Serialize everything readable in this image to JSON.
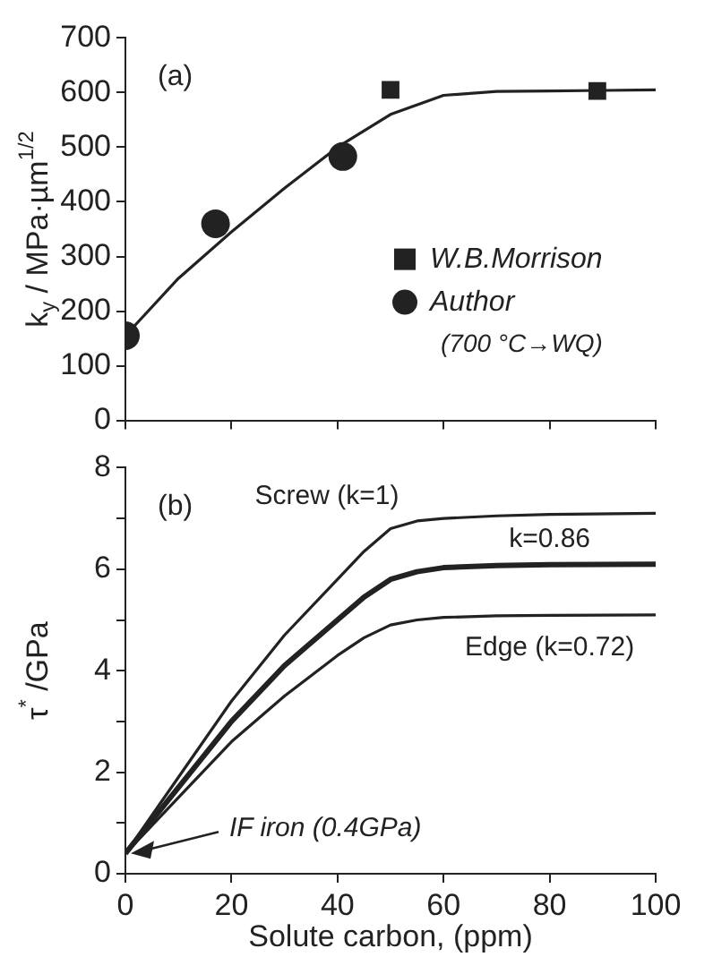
{
  "chart_data": [
    {
      "type": "scatter",
      "ylabel": "k$_{y}$ / MPa·µm$^{1/2}$",
      "xlim": [
        0,
        100
      ],
      "xticks": [
        {
          "value": 0,
          "label": null
        },
        {
          "value": 20,
          "label": null
        },
        {
          "value": 40,
          "label": null
        },
        {
          "value": 60,
          "label": null
        },
        {
          "value": 80,
          "label": null
        },
        {
          "value": 100,
          "label": null
        }
      ],
      "ylim": [
        0,
        700
      ],
      "yticks": [
        0,
        100,
        200,
        300,
        400,
        500,
        600,
        700
      ],
      "tick_labels": "y",
      "grid": false,
      "legend": "bottom right",
      "annotations": [
        "(a)",
        "(700 °C→WQ)"
      ],
      "series": [
        {
          "type": "line",
          "color": "#222222",
          "marker": "none",
          "x": [
            0,
            10,
            20,
            30,
            40,
            50,
            60,
            70,
            80,
            90,
            100
          ],
          "values": [
            155,
            260,
            345,
            425,
            500,
            560,
            595,
            602,
            603,
            604,
            605
          ]
        },
        {
          "name": "W.B.Morrison",
          "color": "#222222",
          "marker": "square",
          "x": [
            50,
            89
          ],
          "values": [
            605,
            603
          ]
        },
        {
          "name": "Author",
          "color": "#222222",
          "marker": "circle",
          "x": [
            0,
            17,
            41
          ],
          "values": [
            155,
            360,
            483
          ]
        }
      ]
    },
    {
      "type": "line",
      "xlabel": "Solute carbon, (ppm)",
      "ylabel": "τ$^{*}$ /GPa",
      "xlim": [
        0,
        100
      ],
      "xticks": [
        0,
        20,
        40,
        60,
        80,
        100
      ],
      "ylim": [
        0,
        8
      ],
      "yticks": [
        0,
        {
          "value": 1,
          "label": null
        },
        2,
        {
          "value": 3,
          "label": null
        },
        4,
        {
          "value": 5,
          "label": null
        },
        6,
        {
          "value": 7,
          "label": null
        },
        8
      ],
      "grid": false,
      "marker": "none",
      "annotations": [
        "(b)",
        {
          "text": "IF iron (0.4GPa)",
          "x": 0,
          "y": 0.4
        }
      ],
      "series": [
        {
          "name": "Screw (k=1)",
          "color": "#222222",
          "x": [
            0,
            10,
            20,
            30,
            40,
            45,
            50,
            55,
            60,
            70,
            80,
            100
          ],
          "values": [
            0.4,
            1.9,
            3.4,
            4.7,
            5.8,
            6.35,
            6.8,
            6.95,
            7.0,
            7.05,
            7.08,
            7.1
          ]
        },
        {
          "name": "k=0.86",
          "color": "#222222",
          "x": [
            0,
            10,
            20,
            30,
            40,
            45,
            50,
            55,
            60,
            70,
            80,
            100
          ],
          "values": [
            0.4,
            1.7,
            3.0,
            4.1,
            5.0,
            5.45,
            5.8,
            5.95,
            6.03,
            6.07,
            6.09,
            6.1
          ]
        },
        {
          "name": "Edge (k=0.72)",
          "color": "#222222",
          "x": [
            0,
            10,
            20,
            30,
            40,
            45,
            50,
            55,
            60,
            70,
            80,
            100
          ],
          "values": [
            0.4,
            1.5,
            2.6,
            3.5,
            4.3,
            4.65,
            4.9,
            5.0,
            5.05,
            5.08,
            5.09,
            5.1
          ]
        }
      ]
    }
  ]
}
